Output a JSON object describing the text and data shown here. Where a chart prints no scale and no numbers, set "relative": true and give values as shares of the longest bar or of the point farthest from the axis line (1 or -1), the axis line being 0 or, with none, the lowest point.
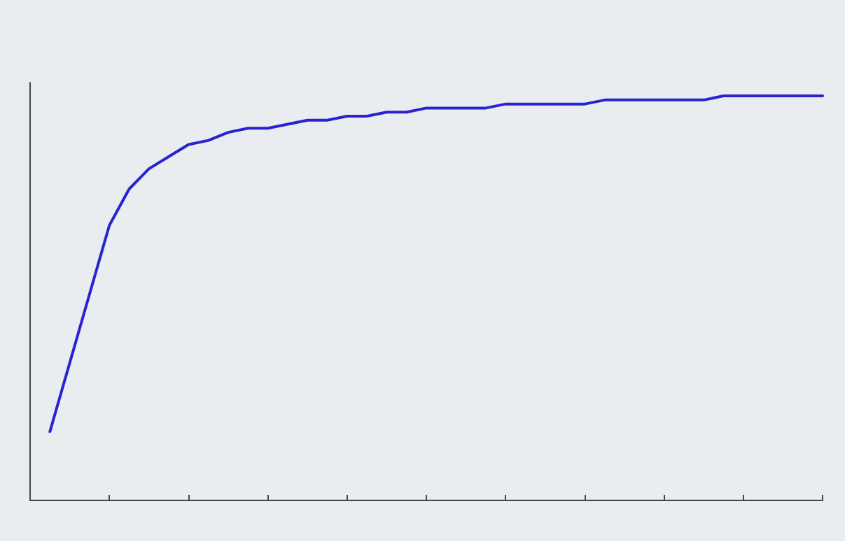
{
  "chart_data": {
    "type": "line",
    "relative": true,
    "marker": "none",
    "line_style": "solid",
    "categories": [
      null,
      null,
      null,
      null,
      null,
      null,
      null,
      null,
      null,
      null,
      null,
      null,
      null,
      null,
      null,
      null,
      null,
      null,
      null,
      null,
      null,
      null,
      null,
      null,
      null,
      null,
      null,
      null,
      null,
      null,
      null,
      null,
      null,
      null,
      null,
      null,
      null,
      null,
      null,
      null,
      null
    ],
    "series": [
      {
        "color": "#2a22d0",
        "values": [
          null,
          0.17,
          0.34,
          0.51,
          0.68,
          0.77,
          0.82,
          0.85,
          0.88,
          0.89,
          0.91,
          0.92,
          0.92,
          0.93,
          0.94,
          0.94,
          0.95,
          0.95,
          0.96,
          0.96,
          0.97,
          0.97,
          0.97,
          0.97,
          0.98,
          0.98,
          0.98,
          0.98,
          0.98,
          0.99,
          0.99,
          0.99,
          0.99,
          0.99,
          0.99,
          1.0,
          1.0,
          1.0,
          1.0,
          1.0,
          1.0
        ]
      }
    ]
  }
}
